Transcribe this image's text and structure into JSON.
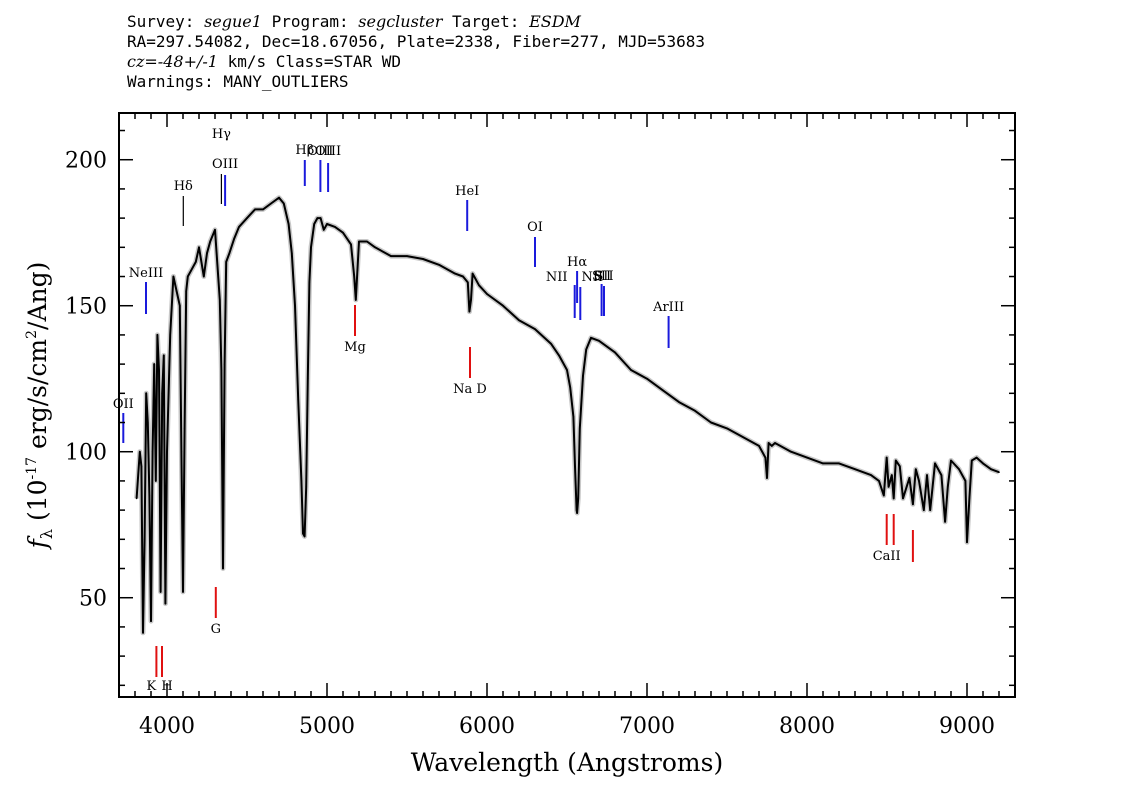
{
  "header": {
    "survey_key": "Survey:",
    "survey": "segue1",
    "program_key": "Program:",
    "program": "segcluster",
    "target_key": "Target:",
    "target": "ESDM",
    "line2": "RA=297.54082, Dec=18.67056, Plate=2338, Fiber=277, MJD=53683",
    "cz_key": "cz=",
    "cz": "-48+/-1",
    "cz_rest": " km/s Class=STAR WD",
    "line4": "Warnings: MANY_OUTLIERS"
  },
  "chart_data": {
    "type": "line",
    "xlabel": "Wavelength (Angstroms)",
    "ylabel": "f_λ (10^-17 erg/s/cm^2/Ang)",
    "ylabel_parts": {
      "f": "f",
      "sub": "λ",
      "pre": " (10",
      "exp1": "-17",
      "mid": " erg/s/cm",
      "exp2": "2",
      "post": "/Ang)"
    },
    "xlim": [
      3700,
      9300
    ],
    "ylim": [
      16,
      216
    ],
    "xticks": [
      4000,
      5000,
      6000,
      7000,
      8000,
      9000
    ],
    "xtick_labels": [
      "4000",
      "5000",
      "6000",
      "7000",
      "8000",
      "9000"
    ],
    "yticks": [
      50,
      100,
      150,
      200
    ],
    "ytick_labels": [
      "50",
      "100",
      "150",
      "200"
    ],
    "grid": false,
    "series": [
      {
        "color": "#000000",
        "x": [
          3810,
          3830,
          3840,
          3850,
          3860,
          3870,
          3880,
          3890,
          3900,
          3910,
          3920,
          3930,
          3940,
          3950,
          3960,
          3970,
          3980,
          3990,
          4000,
          4020,
          4040,
          4060,
          4080,
          4090,
          4100,
          4110,
          4120,
          4130,
          4150,
          4180,
          4200,
          4230,
          4250,
          4270,
          4300,
          4320,
          4330,
          4340,
          4350,
          4360,
          4370,
          4390,
          4420,
          4450,
          4500,
          4550,
          4600,
          4650,
          4700,
          4730,
          4760,
          4780,
          4800,
          4820,
          4840,
          4850,
          4860,
          4870,
          4880,
          4890,
          4900,
          4920,
          4940,
          4960,
          4980,
          5000,
          5050,
          5100,
          5150,
          5170,
          5180,
          5190,
          5200,
          5250,
          5300,
          5400,
          5500,
          5600,
          5700,
          5800,
          5850,
          5880,
          5890,
          5900,
          5910,
          5920,
          5950,
          6000,
          6100,
          6200,
          6300,
          6400,
          6450,
          6500,
          6520,
          6540,
          6550,
          6560,
          6563,
          6570,
          6580,
          6600,
          6620,
          6650,
          6700,
          6800,
          6900,
          7000,
          7100,
          7200,
          7300,
          7400,
          7500,
          7600,
          7700,
          7740,
          7750,
          7760,
          7780,
          7800,
          7900,
          8000,
          8100,
          8200,
          8300,
          8400,
          8450,
          8480,
          8498,
          8510,
          8530,
          8542,
          8555,
          8580,
          8600,
          8640,
          8662,
          8680,
          8700,
          8730,
          8750,
          8770,
          8800,
          8840,
          8863,
          8880,
          8900,
          8950,
          8990,
          9000,
          9015,
          9030,
          9060,
          9100,
          9150,
          9200
        ],
        "y": [
          84,
          100,
          95,
          38,
          70,
          120,
          110,
          85,
          42,
          100,
          130,
          90,
          140,
          128,
          52,
          120,
          133,
          48,
          100,
          140,
          160,
          155,
          150,
          100,
          52,
          108,
          155,
          160,
          162,
          165,
          170,
          160,
          168,
          172,
          176,
          160,
          152,
          128,
          60,
          130,
          165,
          168,
          173,
          177,
          180,
          183,
          183,
          185,
          187,
          185,
          178,
          168,
          150,
          118,
          90,
          72,
          71,
          88,
          125,
          158,
          170,
          178,
          180,
          180,
          176,
          178,
          177,
          175,
          171,
          160,
          152,
          162,
          172,
          172,
          170,
          167,
          167,
          166,
          164,
          161,
          160,
          158,
          148,
          152,
          161,
          160,
          157,
          154,
          150,
          145,
          142,
          137,
          133,
          128,
          122,
          112,
          95,
          80,
          79,
          84,
          108,
          126,
          135,
          139,
          138,
          134,
          128,
          125,
          121,
          117,
          114,
          110,
          108,
          105,
          102,
          98,
          91,
          103,
          102,
          103,
          100,
          98,
          96,
          96,
          94,
          92,
          90,
          85,
          98,
          88,
          92,
          84,
          97,
          95,
          84,
          91,
          82,
          94,
          90,
          80,
          92,
          80,
          96,
          92,
          76,
          88,
          97,
          94,
          90,
          69,
          84,
          97,
          98,
          96,
          94,
          93
        ]
      }
    ],
    "lines": [
      {
        "label": "OII",
        "wave": 3727,
        "color": "blue"
      },
      {
        "label": "NeIII",
        "wave": 3869,
        "color": "blue"
      },
      {
        "label": "Hδ",
        "wave": 4102,
        "color": "black"
      },
      {
        "label": "Hγ",
        "wave": 4340,
        "color": "black"
      },
      {
        "label": "OIII",
        "wave": 4363,
        "color": "blue"
      },
      {
        "label": "Hβ",
        "wave": 4861,
        "color": "blue"
      },
      {
        "label": "OIII",
        "wave": 4959,
        "color": "blue"
      },
      {
        "label": "OIII",
        "wave": 5007,
        "color": "blue"
      },
      {
        "label": "HeI",
        "wave": 5876,
        "color": "blue"
      },
      {
        "label": "OI",
        "wave": 6300,
        "color": "blue"
      },
      {
        "label": "NII",
        "wave": 6548,
        "color": "blue"
      },
      {
        "label": "Hα",
        "wave": 6563,
        "color": "blue"
      },
      {
        "label": "NII",
        "wave": 6583,
        "color": "blue"
      },
      {
        "label": "SII",
        "wave": 6716,
        "color": "blue"
      },
      {
        "label": "SII",
        "wave": 6731,
        "color": "blue"
      },
      {
        "label": "ArIII",
        "wave": 7135,
        "color": "blue"
      },
      {
        "label": "K",
        "wave": 3934,
        "color": "red"
      },
      {
        "label": "H",
        "wave": 3969,
        "color": "red"
      },
      {
        "label": "G",
        "wave": 4305,
        "color": "red"
      },
      {
        "label": "Mg",
        "wave": 5175,
        "color": "red"
      },
      {
        "label": "Na D",
        "wave": 5894,
        "color": "red"
      },
      {
        "label": "CaII",
        "wave": 8498,
        "color": "red"
      },
      {
        "label": "",
        "wave": 8542,
        "color": "red"
      },
      {
        "label": "",
        "wave": 8662,
        "color": "red"
      }
    ]
  }
}
